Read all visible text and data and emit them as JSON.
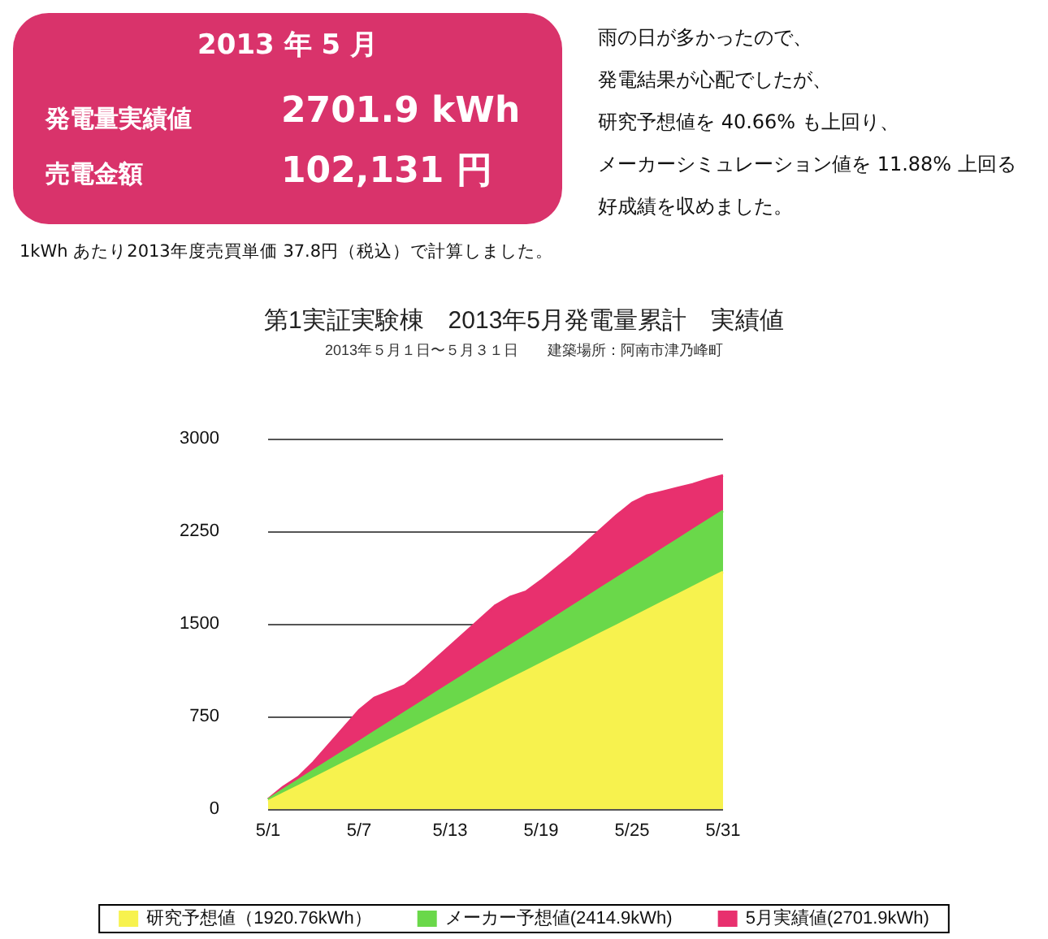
{
  "chart_data": {
    "type": "area",
    "title": "第1実証実験棟　2013年5月発電量累計　実績値",
    "subtitle": "2013年５月１日〜５月３１日　　建築場所：阿南市津乃峰町",
    "annotations": [
      "2013 年 5 月",
      "発電量実績値",
      "2701.9 kWh",
      "売電金額",
      "102,131 円",
      "雨の日が多かったので、",
      "発電結果が心配でしたが、",
      "研究予想値を 40.66% も上回り、",
      "メーカーシミュレーション値を 11.88% 上回る",
      "好成績を収めました。",
      "1kWh あたり2013年度売買単価 37.8円（税込）で計算しました。"
    ],
    "categories": [
      "5/1",
      null,
      null,
      null,
      null,
      null,
      "5/7",
      null,
      null,
      null,
      null,
      null,
      "5/13",
      null,
      null,
      null,
      null,
      null,
      "5/19",
      null,
      null,
      null,
      null,
      null,
      "5/25",
      null,
      null,
      null,
      null,
      null,
      "5/31"
    ],
    "series": [
      {
        "name": "研究予想値（1920.76kWh）",
        "color": "#f7f24e",
        "values": [
          62,
          124,
          186,
          248,
          310,
          372,
          434,
          496,
          558,
          620,
          682,
          744,
          805,
          867,
          929,
          991,
          1053,
          1115,
          1177,
          1239,
          1301,
          1363,
          1425,
          1487,
          1549,
          1611,
          1673,
          1735,
          1797,
          1859,
          1920.76
        ]
      },
      {
        "name": "メーカー予想値(2414.9kWh)",
        "color": "#6ad84a",
        "values": [
          78,
          156,
          234,
          312,
          390,
          467,
          545,
          623,
          701,
          779,
          857,
          935,
          1013,
          1091,
          1169,
          1246,
          1324,
          1402,
          1480,
          1558,
          1636,
          1714,
          1792,
          1870,
          1948,
          2025,
          2103,
          2181,
          2259,
          2337,
          2414.9
        ]
      },
      {
        "name": "5月実績値(2701.9kWh)",
        "color": "#e8306e",
        "values": [
          80,
          180,
          260,
          380,
          520,
          660,
          800,
          900,
          950,
          1000,
          1100,
          1210,
          1320,
          1430,
          1540,
          1650,
          1720,
          1760,
          1850,
          1950,
          2050,
          2160,
          2270,
          2380,
          2480,
          2540,
          2570,
          2600,
          2630,
          2670,
          2701.9
        ]
      }
    ],
    "ylim": [
      0,
      3000
    ],
    "yticks": [
      0,
      750,
      1500,
      2250,
      3000
    ],
    "grid": "y",
    "legend": "bottom",
    "marker": "none"
  }
}
